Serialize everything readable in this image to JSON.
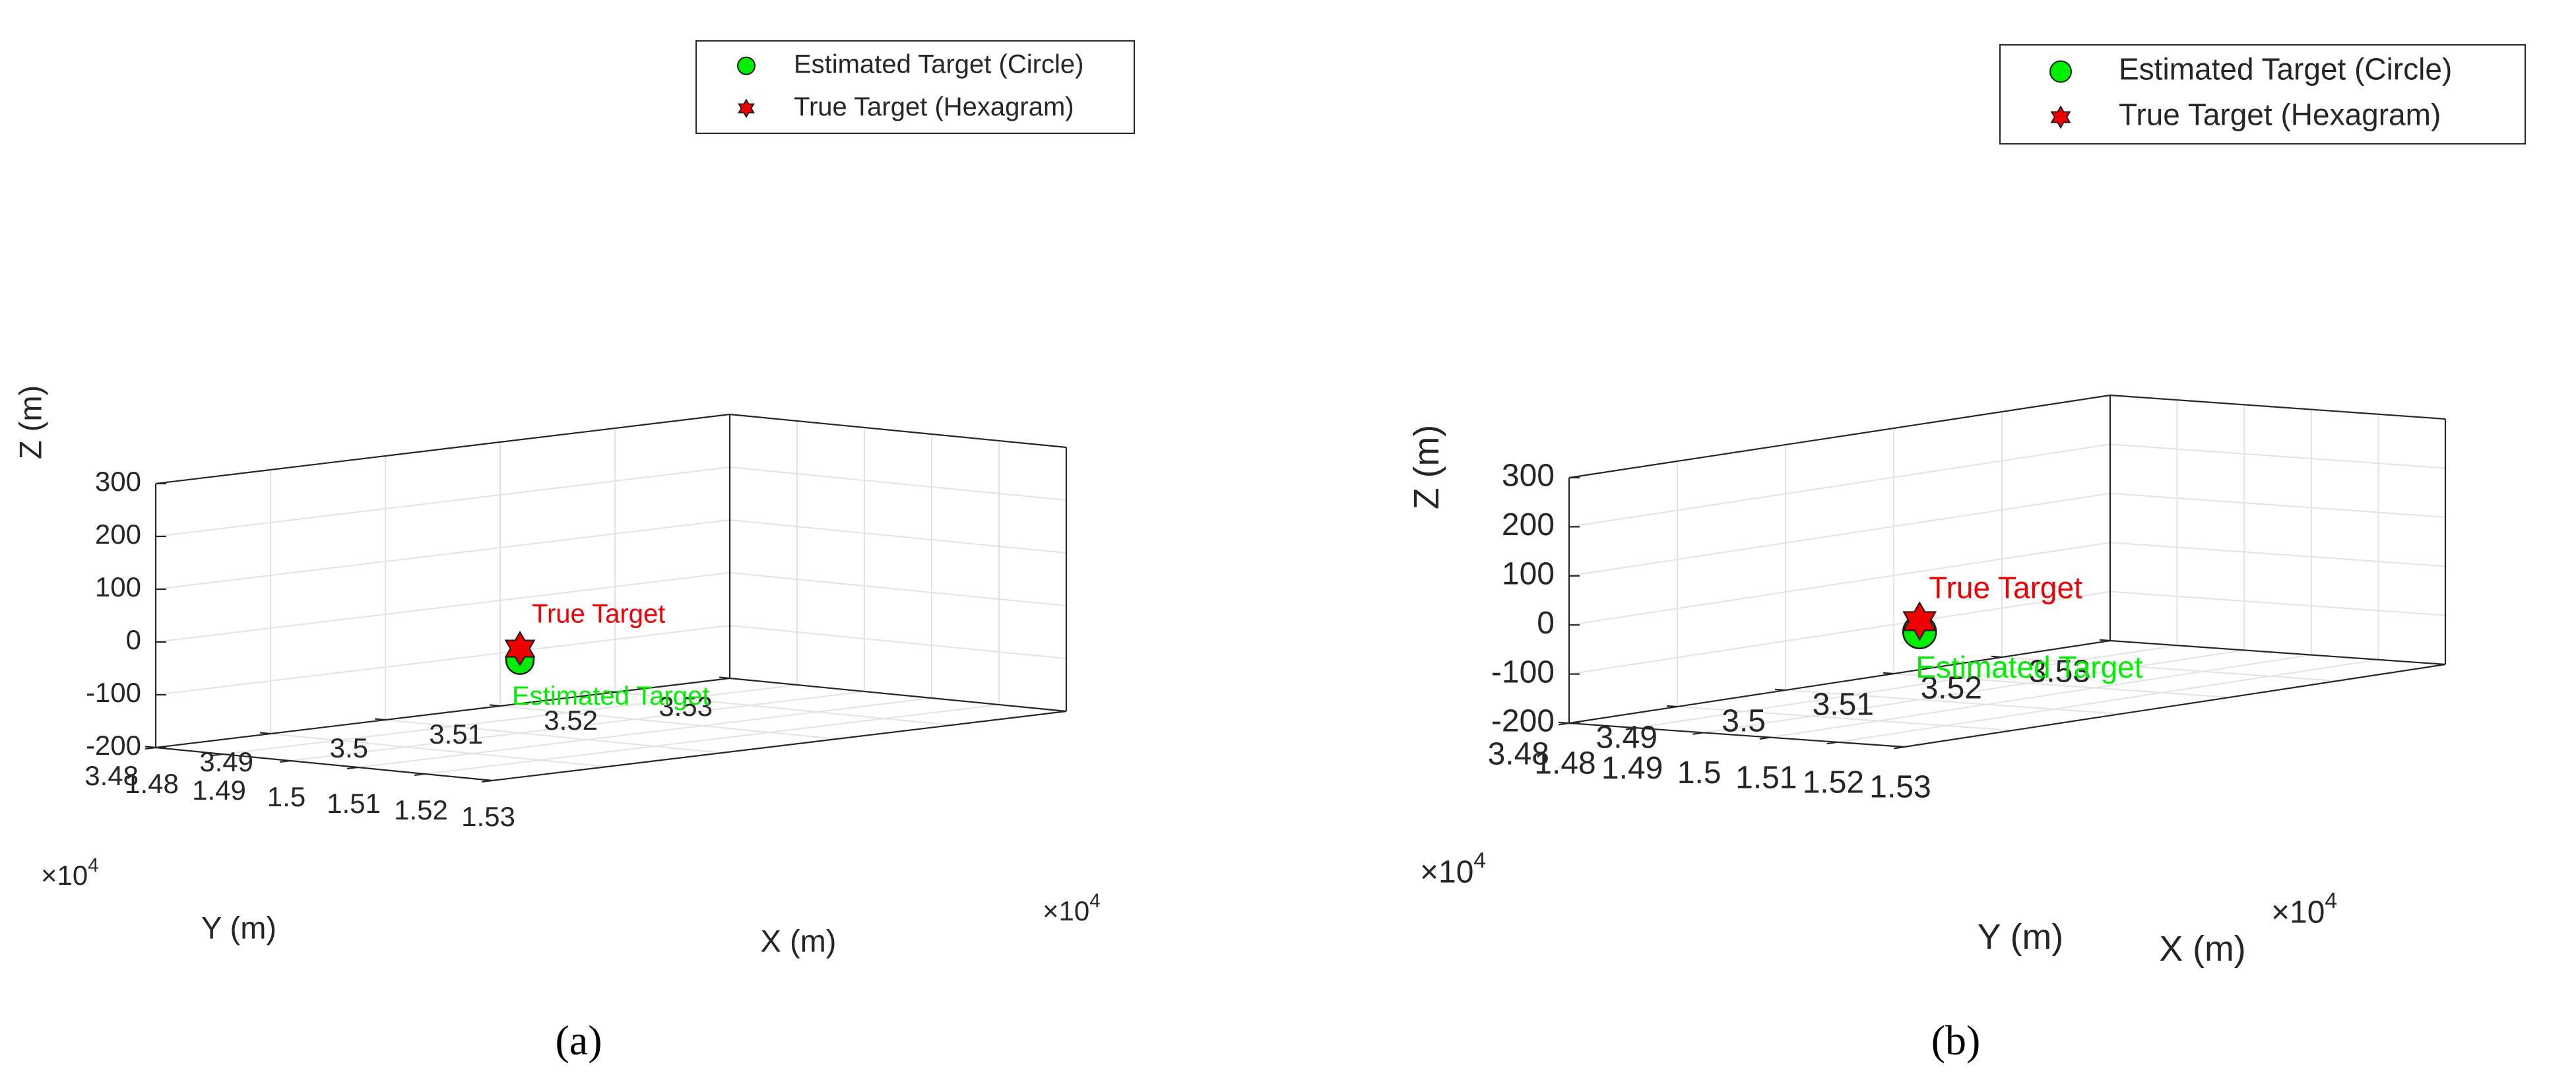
{
  "chart_data": [
    {
      "panel": "a",
      "caption": "(a)",
      "type": "scatter",
      "xlabel": "X (m)",
      "ylabel": "Y (m)",
      "zlabel": "Z (m)",
      "x_ticks": [
        "1.48",
        "1.49",
        "1.5",
        "1.51",
        "1.52",
        "1.53"
      ],
      "y_ticks": [
        "3.48",
        "3.49",
        "3.5",
        "3.51",
        "3.52",
        "3.53"
      ],
      "z_ticks": [
        "-200",
        "-100",
        "0",
        "100",
        "200",
        "300"
      ],
      "x_exponent": "×10",
      "y_exponent": "×10",
      "exponent_power": "4",
      "xlim": [
        14800,
        15300
      ],
      "ylim": [
        34800,
        35300
      ],
      "zlim": [
        -200,
        300
      ],
      "grid": true,
      "legend_position": "top-right",
      "series": [
        {
          "name": "Estimated Target (Circle)",
          "marker": "circle",
          "color": "#00ee00",
          "label": "Estimated Target",
          "points": [
            {
              "x": 15000,
              "y": 35000,
              "z": -62
            }
          ]
        },
        {
          "name": "True Target (Hexagram)",
          "marker": "hexagram",
          "color": "#ee0000",
          "label": "True Target",
          "points": [
            {
              "x": 15000,
              "y": 35000,
              "z": -40
            }
          ]
        }
      ]
    },
    {
      "panel": "b",
      "caption": "(b)",
      "type": "scatter",
      "xlabel": "X (m)",
      "ylabel": "Y (m)",
      "zlabel": "Z (m)",
      "x_ticks": [
        "1.48",
        "1.49",
        "1.5",
        "1.51",
        "1.52",
        "1.53"
      ],
      "y_ticks": [
        "3.48",
        "3.49",
        "3.5",
        "3.51",
        "3.52",
        "3.53"
      ],
      "z_ticks": [
        "-200",
        "-100",
        "0",
        "100",
        "200",
        "300"
      ],
      "x_exponent": "×10",
      "y_exponent": "×10",
      "exponent_power": "4",
      "xlim": [
        14800,
        15300
      ],
      "ylim": [
        34800,
        35300
      ],
      "zlim": [
        -200,
        300
      ],
      "grid": true,
      "legend_position": "top-right",
      "series": [
        {
          "name": "Estimated Target (Circle)",
          "marker": "circle",
          "color": "#00ee00",
          "label": "Estimated Target",
          "points": [
            {
              "x": 15000,
              "y": 35000,
              "z": -62
            }
          ]
        },
        {
          "name": "True Target (Hexagram)",
          "marker": "hexagram",
          "color": "#ee0000",
          "label": "True Target",
          "points": [
            {
              "x": 15000,
              "y": 35000,
              "z": -40
            }
          ]
        }
      ]
    }
  ]
}
